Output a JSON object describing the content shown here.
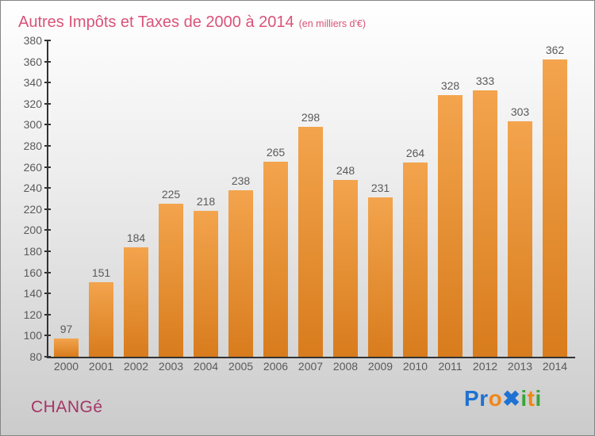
{
  "chart_data": {
    "type": "bar",
    "title": "Autres Impôts et Taxes de 2000 à 2014",
    "subtitle": "(en milliers d'€)",
    "categories": [
      "2000",
      "2001",
      "2002",
      "2003",
      "2004",
      "2005",
      "2006",
      "2007",
      "2008",
      "2009",
      "2010",
      "2011",
      "2012",
      "2013",
      "2014"
    ],
    "values": [
      97,
      151,
      184,
      225,
      218,
      238,
      265,
      298,
      248,
      231,
      264,
      328,
      333,
      303,
      362
    ],
    "xlabel": "",
    "ylabel": "",
    "ylim": [
      80,
      380
    ],
    "ytick_step": 20,
    "grid": false,
    "legend": false
  },
  "footer": {
    "city": "CHANGé",
    "logo_text": "Proxiti",
    "logo_letters": [
      {
        "char": "P",
        "color": "#1f72d2"
      },
      {
        "char": "r",
        "color": "#1f72d2"
      },
      {
        "char": "o",
        "color": "#f0861a"
      },
      {
        "char": "x",
        "color": "#1f72d2",
        "display": "✖"
      },
      {
        "char": "i",
        "color": "#3ba43b"
      },
      {
        "char": "t",
        "color": "#f0861a"
      },
      {
        "char": "i",
        "color": "#3ba43b"
      }
    ]
  },
  "colors": {
    "title": "#d95379",
    "axis": "#333333",
    "labels": "#5a5a5a",
    "city": "#a43566",
    "bar_top": "#f3a44d",
    "bar_bottom": "#d87c1d"
  }
}
